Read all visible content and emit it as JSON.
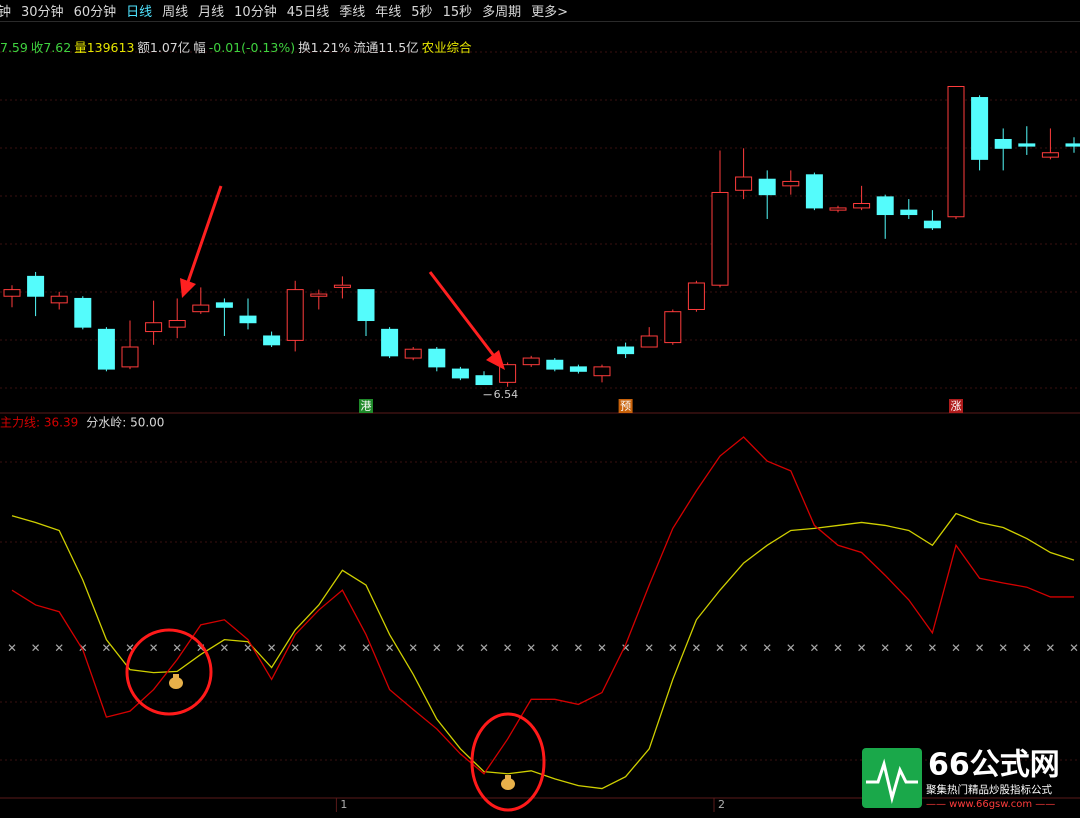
{
  "toolbar": {
    "tabs": [
      "钟",
      "30分钟",
      "60分钟",
      "日线",
      "周线",
      "月线",
      "10分钟",
      "45日线",
      "季线",
      "年线",
      "5秒",
      "15秒",
      "多周期",
      "更多>"
    ],
    "active": 3
  },
  "info": [
    {
      "text": "7.59",
      "color": "#3fd23f"
    },
    {
      "text": "收7.62",
      "color": "#3fd23f"
    },
    {
      "text": "量139613",
      "color": "#e6e600"
    },
    {
      "text": "额1.07亿",
      "color": "#d8d8d8"
    },
    {
      "text": "幅",
      "color": "#d8d8d8"
    },
    {
      "text": "-0.01(-0.13%)",
      "color": "#3fd23f"
    },
    {
      "text": "换1.21%",
      "color": "#d8d8d8"
    },
    {
      "text": "流通11.5亿",
      "color": "#d8d8d8"
    },
    {
      "text": "农业综合",
      "color": "#e6e600"
    }
  ],
  "chart_data": [
    {
      "type": "candlestick",
      "up_color": "#ff3c3c",
      "down_color": "#54fcfc",
      "ylim": [
        6.48,
        8.02
      ],
      "categories": [
        null,
        null,
        null,
        null,
        null,
        null,
        null,
        null,
        null,
        null,
        null,
        null,
        null,
        null,
        "1",
        null,
        null,
        null,
        null,
        null,
        null,
        null,
        null,
        null,
        null,
        null,
        null,
        null,
        null,
        null,
        "2",
        null,
        null,
        null,
        null,
        null,
        null,
        null,
        null,
        null,
        null,
        null,
        null,
        null,
        null,
        null
      ],
      "open": [
        6.95,
        7.04,
        6.92,
        6.94,
        6.8,
        6.63,
        6.79,
        6.81,
        6.88,
        6.92,
        6.86,
        6.77,
        6.75,
        6.95,
        6.99,
        6.98,
        6.8,
        6.67,
        6.71,
        6.62,
        6.59,
        6.56,
        6.64,
        6.66,
        6.63,
        6.59,
        6.72,
        6.72,
        6.74,
        6.89,
        7.0,
        7.43,
        7.48,
        7.45,
        7.5,
        7.34,
        7.35,
        7.4,
        7.34,
        7.29,
        7.31,
        7.85,
        7.66,
        7.64,
        7.58,
        7.64
      ],
      "close": [
        6.98,
        6.95,
        6.95,
        6.81,
        6.62,
        6.72,
        6.83,
        6.84,
        6.91,
        6.9,
        6.83,
        6.73,
        6.98,
        6.96,
        7.0,
        6.84,
        6.68,
        6.71,
        6.63,
        6.58,
        6.55,
        6.64,
        6.67,
        6.62,
        6.61,
        6.63,
        6.69,
        6.77,
        6.88,
        7.01,
        7.42,
        7.49,
        7.41,
        7.47,
        7.35,
        7.35,
        7.37,
        7.32,
        7.32,
        7.26,
        7.9,
        7.57,
        7.62,
        7.63,
        7.6,
        7.63
      ],
      "high": [
        7.0,
        7.06,
        6.97,
        6.95,
        6.81,
        6.84,
        6.93,
        6.94,
        6.99,
        6.94,
        6.94,
        6.79,
        7.02,
        6.98,
        7.04,
        6.98,
        6.81,
        6.72,
        6.72,
        6.63,
        6.61,
        6.65,
        6.68,
        6.67,
        6.64,
        6.64,
        6.74,
        6.81,
        6.89,
        7.02,
        7.61,
        7.62,
        7.52,
        7.52,
        7.51,
        7.36,
        7.45,
        7.41,
        7.39,
        7.34,
        7.9,
        7.86,
        7.71,
        7.72,
        7.71,
        7.67
      ],
      "low": [
        6.9,
        6.86,
        6.89,
        6.8,
        6.61,
        6.62,
        6.73,
        6.76,
        6.87,
        6.77,
        6.8,
        6.72,
        6.7,
        6.89,
        6.94,
        6.77,
        6.67,
        6.66,
        6.61,
        6.57,
        6.55,
        6.54,
        6.63,
        6.61,
        6.6,
        6.56,
        6.67,
        6.72,
        6.73,
        6.88,
        6.99,
        7.39,
        7.3,
        7.41,
        7.34,
        7.33,
        7.34,
        7.21,
        7.3,
        7.25,
        7.3,
        7.52,
        7.52,
        7.59,
        7.57,
        7.6
      ],
      "value_labels": [
        null,
        null,
        null,
        null,
        null,
        null,
        null,
        null,
        null,
        null,
        null,
        null,
        null,
        null,
        null,
        null,
        null,
        null,
        null,
        null,
        null,
        "6.54",
        null,
        null,
        null,
        null,
        null,
        null,
        null,
        null,
        null,
        null,
        null,
        null,
        null,
        null,
        null,
        null,
        null,
        null,
        null,
        null,
        null,
        null,
        null,
        null
      ],
      "badges": [
        null,
        null,
        null,
        null,
        null,
        null,
        null,
        null,
        null,
        null,
        null,
        null,
        null,
        null,
        null,
        {
          "text": "港",
          "color": "#1f8a2a"
        },
        null,
        null,
        null,
        null,
        null,
        null,
        null,
        null,
        null,
        null,
        {
          "text": "预",
          "color": "#c8620a"
        },
        null,
        null,
        null,
        null,
        null,
        null,
        null,
        null,
        null,
        null,
        null,
        null,
        null,
        {
          "text": "涨",
          "color": "#b01c1c"
        },
        null,
        null,
        null,
        null,
        null
      ]
    },
    {
      "type": "line",
      "ylim": [
        14,
        105
      ],
      "series": [
        {
          "label": "主力线: 36.39",
          "color": "#d40000",
          "values": [
            63.6,
            60.1,
            58.5,
            49.5,
            33.6,
            35.0,
            40.1,
            47.2,
            55.4,
            56.6,
            51.9,
            42.5,
            53.1,
            58.9,
            63.6,
            53.1,
            40.1,
            35.4,
            30.8,
            24.9,
            20.2,
            28.4,
            37.8,
            37.8,
            36.6,
            39.4,
            50.7,
            64.8,
            78.2,
            87.1,
            95.3,
            99.8,
            94.1,
            91.8,
            78.9,
            74.2,
            72.5,
            67.1,
            61.3,
            53.5,
            74.2,
            66.4,
            65.3,
            64.3,
            62.0,
            62.0
          ]
        },
        {
          "color": "#cfcf00",
          "values": [
            81.2,
            79.6,
            77.7,
            66.0,
            51.9,
            44.8,
            44.1,
            44.4,
            48.4,
            51.9,
            51.4,
            45.3,
            54.2,
            60.1,
            68.3,
            64.8,
            53.1,
            43.7,
            33.1,
            26.1,
            20.7,
            20.2,
            20.9,
            19.0,
            17.4,
            16.7,
            19.5,
            26.1,
            42.5,
            56.6,
            63.6,
            70.0,
            74.2,
            77.7,
            78.2,
            78.9,
            79.6,
            78.9,
            77.7,
            74.2,
            81.7,
            79.6,
            78.4,
            75.8,
            72.5,
            70.7
          ]
        }
      ],
      "reference": {
        "label": "分水岭: 50.00",
        "value": 50,
        "color": "#a8a8a8"
      }
    }
  ],
  "watermark": {
    "logo": "66公式网",
    "slogan": "聚集热门精品炒股指标公式",
    "url": "—— www.66gsw.com ——"
  }
}
